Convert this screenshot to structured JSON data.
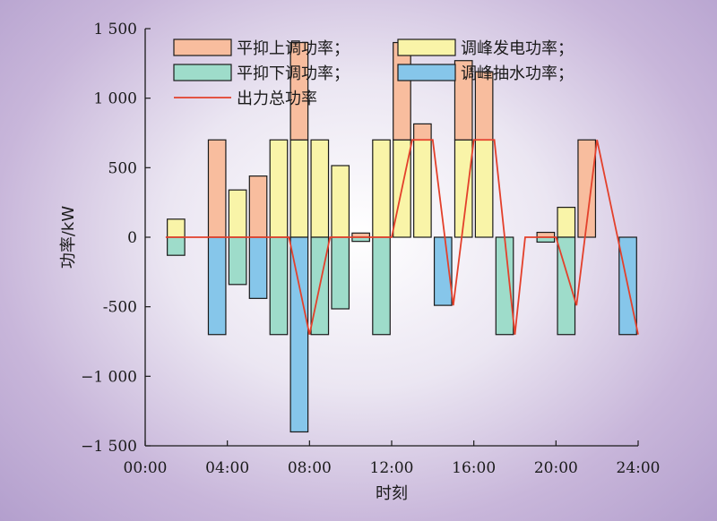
{
  "chart_data": {
    "type": "bar",
    "xlabel": "时刻",
    "ylabel": "功率/kW",
    "ylim": [
      -1500,
      1500
    ],
    "xlim": [
      0,
      24
    ],
    "yticks": [
      -1500,
      -1000,
      -500,
      0,
      500,
      1000,
      1500
    ],
    "ytick_labels": [
      "−1 500",
      "−1 000",
      "-500",
      "0",
      "500",
      "1 000",
      "1 500"
    ],
    "xticks": [
      0,
      4,
      8,
      12,
      16,
      20,
      24
    ],
    "xtick_labels": [
      "00:00",
      "04:00",
      "08:00",
      "12:00",
      "16:00",
      "20:00",
      "24:00"
    ],
    "grid": false,
    "legend_position": "top",
    "colors": {
      "peak_up": "#f8bd9e",
      "peak_down": "#9edcca",
      "gen": "#f9f4a8",
      "pump": "#86c6ea",
      "total": "#e3402b",
      "outline": "#1a1a1a"
    },
    "legend": [
      {
        "key": "peak_up",
        "label": "平抑上调功率；",
        "kind": "box"
      },
      {
        "key": "gen",
        "label": "调峰发电功率；",
        "kind": "box"
      },
      {
        "key": "peak_down",
        "label": "平抑下调功率；",
        "kind": "box"
      },
      {
        "key": "pump",
        "label": "调峰抽水功率；",
        "kind": "box"
      },
      {
        "key": "total",
        "label": "出力总功率",
        "kind": "line"
      }
    ],
    "hours": [
      2,
      4,
      5,
      6,
      7,
      8,
      9,
      10,
      11,
      12,
      13,
      14,
      15,
      16,
      17,
      18,
      20,
      21,
      22,
      24
    ],
    "series": [
      {
        "key": "gen",
        "name": "调峰发电功率",
        "values": [
          130,
          0,
          340,
          0,
          700,
          700,
          700,
          515,
          0,
          700,
          700,
          700,
          0,
          700,
          700,
          0,
          0,
          215,
          0,
          0
        ]
      },
      {
        "key": "peak_up",
        "name": "平抑上调功率",
        "values": [
          0,
          700,
          0,
          440,
          0,
          700,
          0,
          0,
          30,
          0,
          700,
          115,
          0,
          570,
          490,
          0,
          35,
          0,
          700,
          0
        ]
      },
      {
        "key": "peak_down",
        "name": "平抑下调功率",
        "values": [
          -130,
          0,
          -340,
          0,
          -700,
          0,
          -700,
          -515,
          -30,
          -700,
          0,
          0,
          0,
          0,
          0,
          -700,
          -35,
          -700,
          0,
          0
        ]
      },
      {
        "key": "pump",
        "name": "调峰抽水功率",
        "values": [
          0,
          -700,
          0,
          -440,
          0,
          -1400,
          0,
          0,
          0,
          0,
          0,
          0,
          -490,
          0,
          0,
          0,
          0,
          0,
          0,
          -700
        ]
      }
    ],
    "total_power": {
      "name": "出力总功率",
      "x": [
        1,
        2.8,
        7,
        8,
        9,
        11.2,
        12,
        13,
        14,
        15,
        16,
        17,
        18,
        18.5,
        19,
        19.5,
        20,
        21,
        22,
        24
      ],
      "y": [
        0,
        0,
        0,
        -700,
        0,
        0,
        0,
        700,
        700,
        -490,
        700,
        700,
        -700,
        0,
        0,
        0,
        0,
        -490,
        700,
        -700
      ]
    }
  }
}
